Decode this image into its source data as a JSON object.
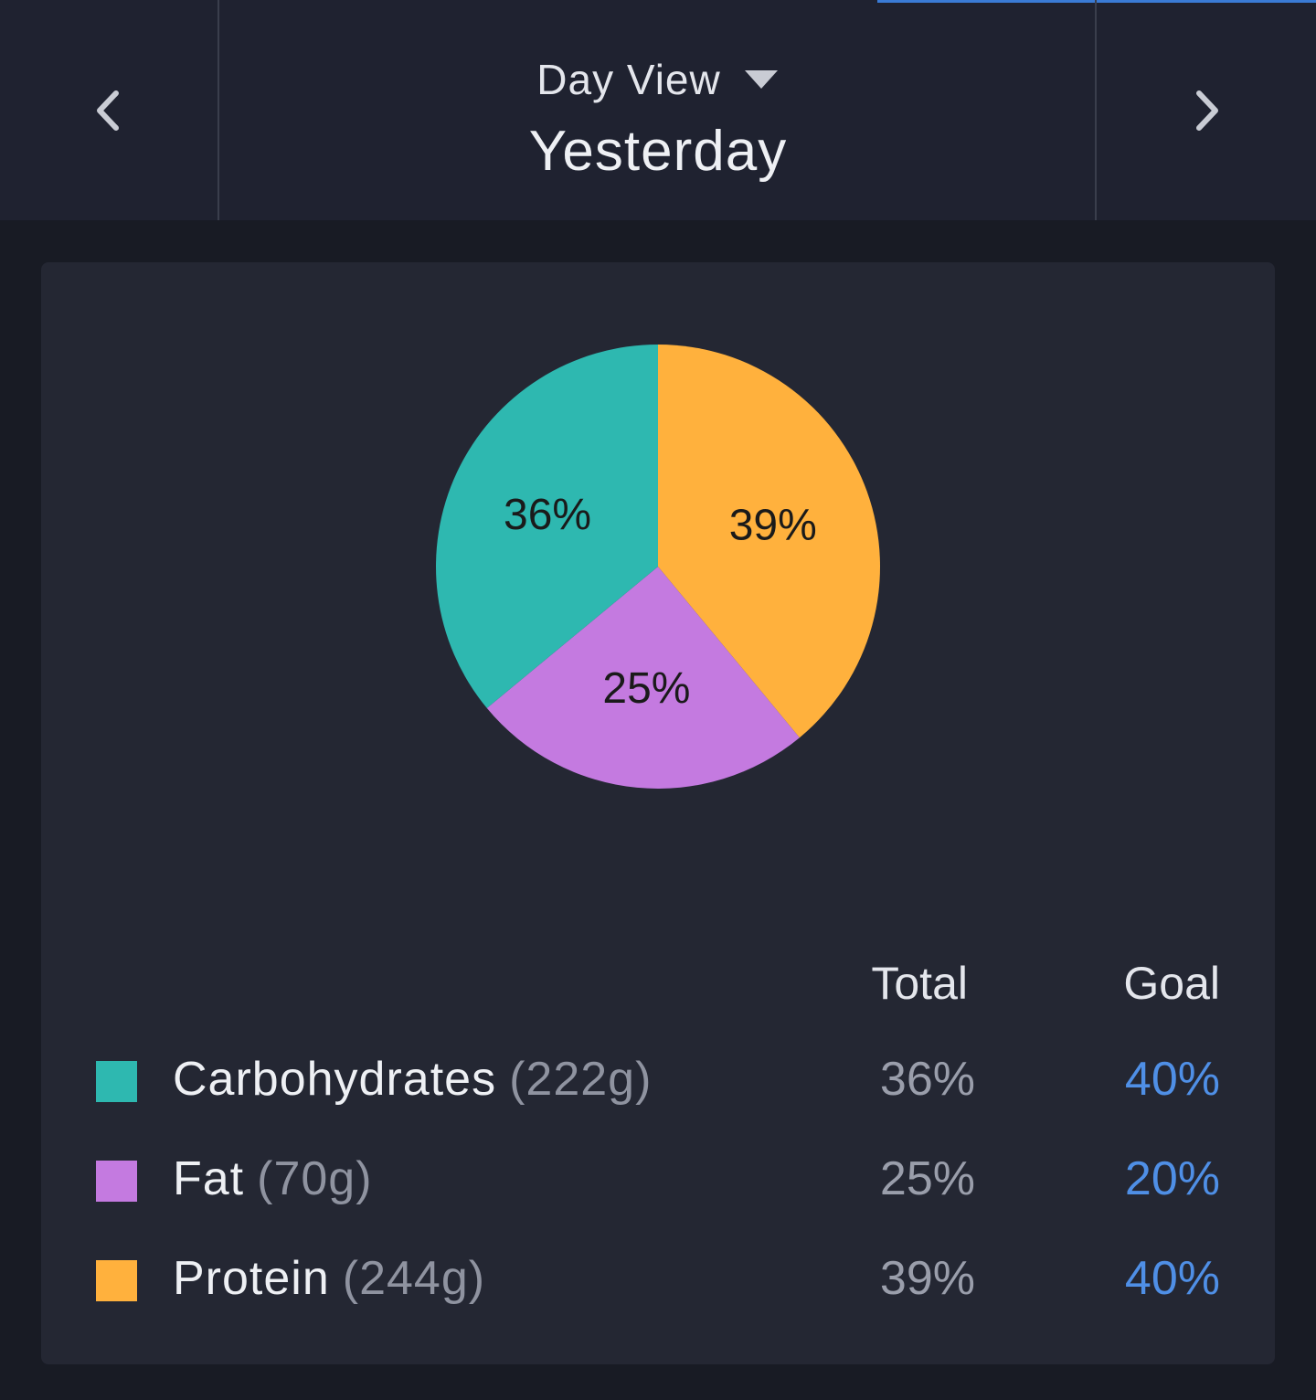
{
  "header": {
    "view_mode": "Day View",
    "date_label": "Yesterday",
    "accent_color": "#3a7bd5"
  },
  "icons": {
    "prev": "chevron-left-icon",
    "next": "chevron-right-icon",
    "dropdown": "caret-down-icon"
  },
  "chart_data": {
    "type": "pie",
    "slices": [
      {
        "label": "Carbohydrates",
        "value": 36,
        "display": "36%",
        "color": "#2eb8b0"
      },
      {
        "label": "Protein",
        "value": 39,
        "display": "39%",
        "color": "#ffb13d"
      },
      {
        "label": "Fat",
        "value": 25,
        "display": "25%",
        "color": "#c47ae0"
      }
    ]
  },
  "table": {
    "col_total": "Total",
    "col_goal": "Goal",
    "rows": [
      {
        "name": "Carbohydrates",
        "grams": "(222g)",
        "total": "36%",
        "goal": "40%",
        "color": "#2eb8b0"
      },
      {
        "name": "Fat",
        "grams": "(70g)",
        "total": "25%",
        "goal": "20%",
        "color": "#c47ae0"
      },
      {
        "name": "Protein",
        "grams": "(244g)",
        "total": "39%",
        "goal": "40%",
        "color": "#ffb13d"
      }
    ]
  }
}
